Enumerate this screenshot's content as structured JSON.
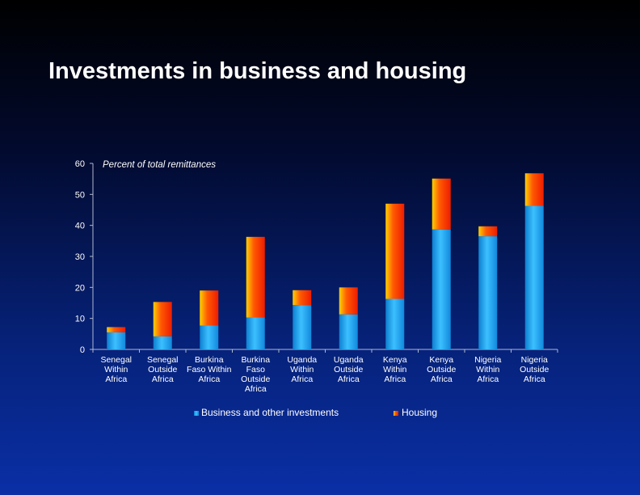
{
  "slide": {
    "title": "Investments in business and housing"
  },
  "colors": {
    "business": "#1ea0e6",
    "housing_top": "#ff3300",
    "housing_bottom": "#ffcc00",
    "axis": "#b0b8d0",
    "text": "#ffffff"
  },
  "chart_data": {
    "type": "bar",
    "stacked": true,
    "ylabel": "Percent of total remittances",
    "xlabel": "",
    "ylim": [
      0,
      60
    ],
    "yticks": [
      0,
      10,
      20,
      30,
      40,
      50,
      60
    ],
    "grid": false,
    "legend_position": "bottom",
    "categories": [
      [
        "Senegal",
        "Within",
        "Africa"
      ],
      [
        "Senegal",
        "Outside",
        "Africa"
      ],
      [
        "Burkina",
        "Faso Within",
        "Africa"
      ],
      [
        "Burkina",
        "Faso",
        "Outside",
        "Africa"
      ],
      [
        "Uganda",
        "Within",
        "Africa"
      ],
      [
        "Uganda",
        "Outside",
        "Africa"
      ],
      [
        "Kenya",
        "Within",
        "Africa"
      ],
      [
        "Kenya",
        "Outside",
        "Africa"
      ],
      [
        "Nigeria",
        "Within",
        "Africa"
      ],
      [
        "Nigeria",
        "Outside",
        "Africa"
      ]
    ],
    "series": [
      {
        "name": "Business and other investments",
        "values": [
          5.5,
          4.2,
          7.7,
          10.3,
          14.3,
          11.3,
          16.3,
          38.7,
          36.5,
          46.3
        ]
      },
      {
        "name": "Housing",
        "values": [
          1.7,
          11.1,
          11.3,
          26.0,
          4.8,
          8.7,
          30.7,
          16.4,
          3.2,
          10.5
        ]
      }
    ]
  }
}
